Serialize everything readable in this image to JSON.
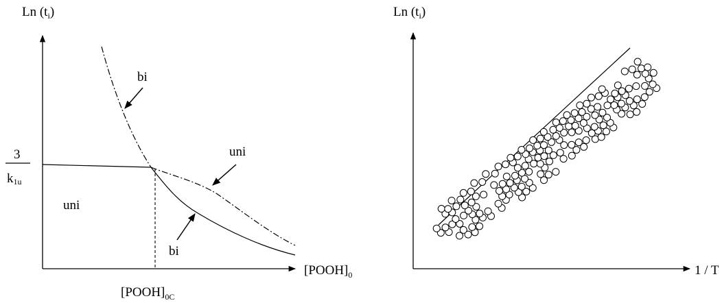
{
  "left_panel": {
    "y_axis_label": {
      "main": "Ln (t",
      "sub": "i",
      "close": ")"
    },
    "x_axis_label": {
      "main": "[POOH]",
      "sub": "0"
    },
    "critical_label": {
      "main": "[POOH]",
      "sub": "0C"
    },
    "y_tick_fraction": {
      "numerator": "3",
      "denominator_main": "k",
      "denominator_sub": "1u"
    },
    "annotations": {
      "bi_upper": "bi",
      "uni_right": "uni",
      "uni_region": "uni",
      "bi_lower": "bi"
    }
  },
  "right_panel": {
    "y_axis_label": {
      "main": "Ln (t",
      "sub": "i",
      "close": ")"
    },
    "x_axis_label": "1 / T"
  },
  "colors": {
    "ink": "#000000",
    "background": "#ffffff"
  }
}
